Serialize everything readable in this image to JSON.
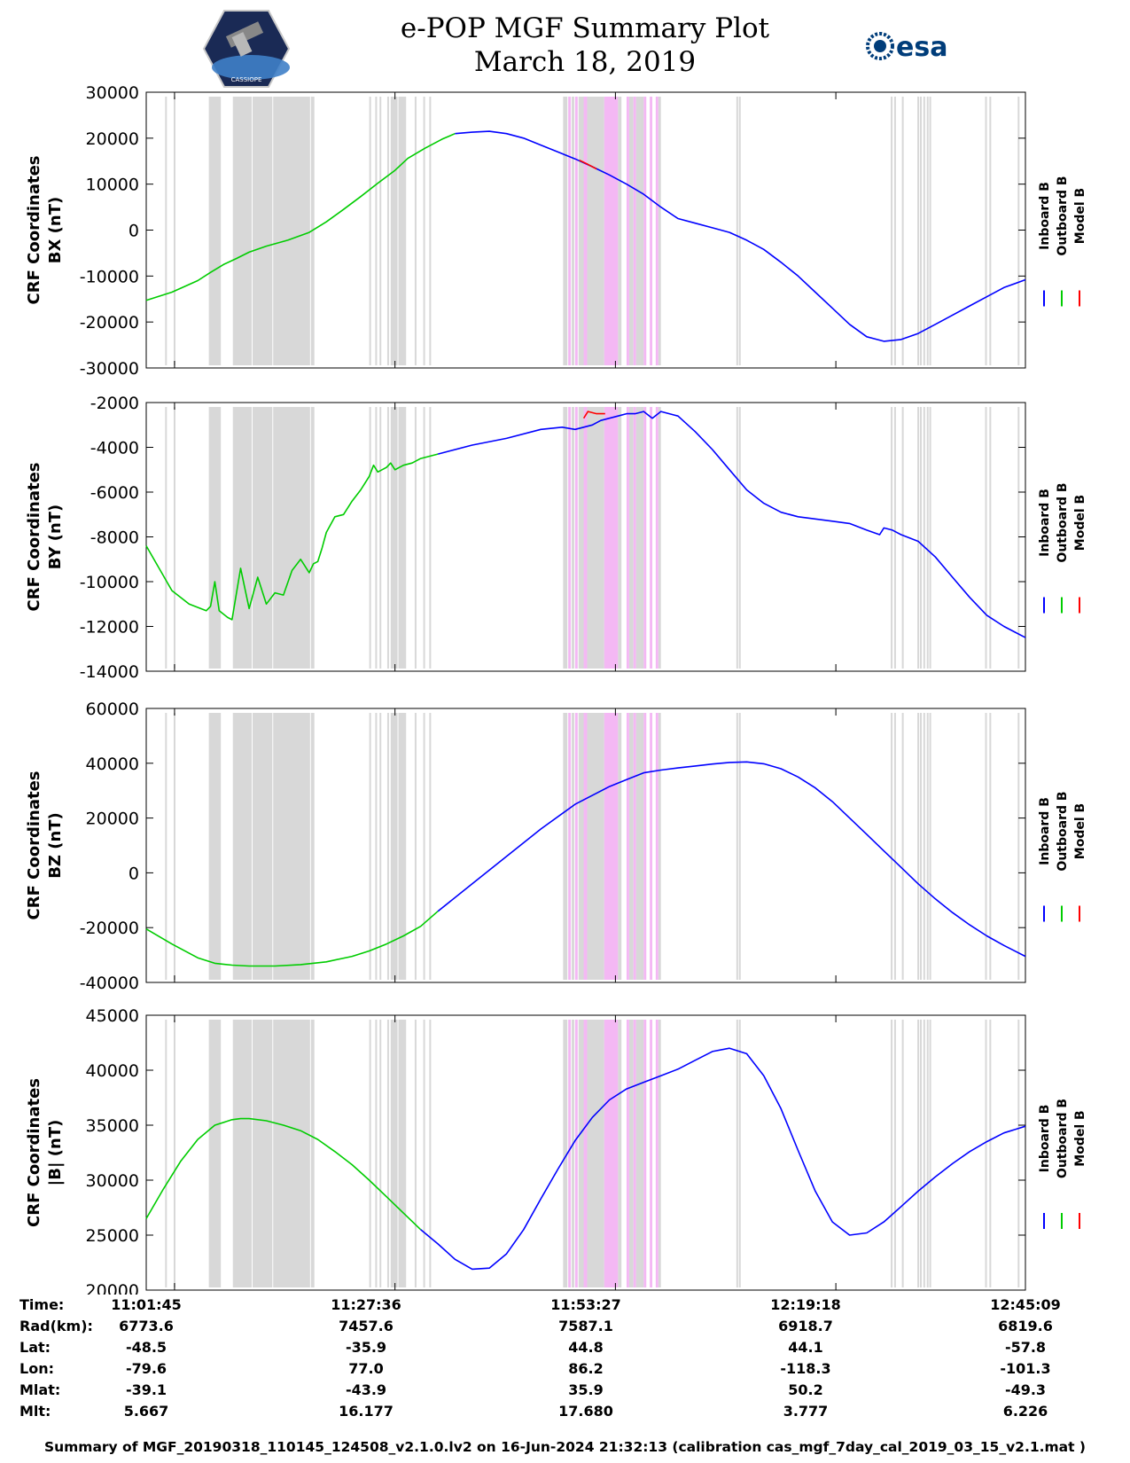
{
  "header": {
    "title_line1": "e-POP MGF Summary Plot",
    "title_line2": "March 18, 2019",
    "left_logo_icon": "cassiope-satellite-logo-icon",
    "left_logo_text": "CASSIOPE",
    "right_logo_icon": "esa-logo-icon",
    "right_logo_text": "esa"
  },
  "colors": {
    "inboard": "#0000ff",
    "outboard": "#00cc00",
    "model": "#ff0000",
    "gray_band": "#d8d8d8",
    "pink_band": "#f4b8f4"
  },
  "legend": {
    "entries": [
      "Inboard B",
      "Outboard B",
      "Model B"
    ]
  },
  "chart_data": [
    {
      "type": "line",
      "ylabel_line1": "CRF Coordinates",
      "ylabel_line2": "BX (nT)",
      "ylim": [
        -30000,
        30000
      ],
      "yticks": [
        30000,
        20000,
        10000,
        0,
        -10000,
        -20000,
        -30000
      ],
      "ytick_labels": [
        "30000",
        "20000",
        "10000",
        "0",
        "-10000",
        "-20000",
        "-30000"
      ],
      "series": [
        {
          "name": "Outboard B",
          "color_key": "outboard",
          "x": [
            0,
            3,
            6,
            7.5,
            9,
            10.5,
            12,
            14,
            16.5,
            19,
            21,
            23,
            25,
            27,
            29,
            30.5,
            32.5,
            34.5,
            36
          ],
          "y": [
            -15300,
            -13500,
            -11000,
            -9200,
            -7500,
            -6200,
            -4800,
            -3500,
            -2200,
            -500,
            1800,
            4500,
            7300,
            10200,
            13000,
            15600,
            17800,
            19800,
            21000
          ]
        },
        {
          "name": "Inboard B",
          "color_key": "inboard",
          "x": [
            36,
            38,
            40,
            42,
            44,
            46,
            48,
            50,
            52,
            54,
            56,
            58,
            60,
            62,
            64,
            66,
            68,
            70,
            72,
            74,
            76,
            78,
            80,
            82,
            84,
            86,
            88,
            90,
            92,
            94,
            96,
            98,
            100,
            102.5
          ],
          "y": [
            21000,
            21300,
            21500,
            21000,
            20000,
            18500,
            17000,
            15500,
            13800,
            12000,
            10000,
            7800,
            5000,
            2500,
            1500,
            500,
            -500,
            -2200,
            -4200,
            -7000,
            -10000,
            -13500,
            -17000,
            -20500,
            -23200,
            -24200,
            -23800,
            -22500,
            -20500,
            -18500,
            -16500,
            -14500,
            -12500,
            -10800
          ]
        },
        {
          "name": "Model B",
          "color_key": "model",
          "x": [
            50.5,
            51.5,
            52.5
          ],
          "y": [
            15200,
            14300,
            13300
          ]
        }
      ]
    },
    {
      "type": "line",
      "ylabel_line1": "CRF Coordinates",
      "ylabel_line2": "BY (nT)",
      "ylim": [
        -14000,
        -2000
      ],
      "yticks": [
        -2000,
        -4000,
        -6000,
        -8000,
        -10000,
        -12000,
        -14000
      ],
      "ytick_labels": [
        "-2000",
        "-4000",
        "-6000",
        "-8000",
        "-10000",
        "-12000",
        "-14000"
      ],
      "series": [
        {
          "name": "Outboard B",
          "color_key": "outboard",
          "x": [
            0,
            1.5,
            3,
            5,
            7,
            7.5,
            8,
            8.5,
            9.5,
            10,
            11,
            12,
            13,
            14,
            15,
            16,
            17,
            18,
            19,
            19.5,
            20,
            20.5,
            21,
            22,
            23,
            24,
            25,
            25.5,
            26,
            26.5,
            27,
            28,
            28.5,
            29,
            29.5,
            30,
            31,
            32,
            33,
            34
          ],
          "y": [
            -8400,
            -9400,
            -10400,
            -11000,
            -11300,
            -11100,
            -10000,
            -11300,
            -11600,
            -11700,
            -9400,
            -11200,
            -9800,
            -11000,
            -10500,
            -10600,
            -9500,
            -9000,
            -9600,
            -9200,
            -9100,
            -8500,
            -7800,
            -7100,
            -7000,
            -6400,
            -5900,
            -5600,
            -5300,
            -4800,
            -5100,
            -4900,
            -4700,
            -5000,
            -4900,
            -4800,
            -4700,
            -4500,
            -4400,
            -4300
          ]
        },
        {
          "name": "Inboard B",
          "color_key": "inboard",
          "x": [
            34,
            38,
            42,
            46,
            48.5,
            50,
            51,
            52,
            53,
            54,
            55,
            56,
            57,
            58,
            59,
            60,
            62,
            64,
            66,
            68,
            70,
            72,
            74,
            76,
            78,
            80,
            82,
            84,
            85.5,
            86,
            87,
            88,
            90,
            92,
            94,
            96,
            98,
            100,
            102.5
          ],
          "y": [
            -4300,
            -3900,
            -3600,
            -3200,
            -3100,
            -3200,
            -3100,
            -3000,
            -2800,
            -2700,
            -2600,
            -2500,
            -2500,
            -2400,
            -2700,
            -2400,
            -2600,
            -3300,
            -4100,
            -5000,
            -5900,
            -6500,
            -6900,
            -7100,
            -7200,
            -7300,
            -7400,
            -7700,
            -7900,
            -7600,
            -7700,
            -7900,
            -8200,
            -8900,
            -9800,
            -10700,
            -11500,
            -12000,
            -12500
          ]
        },
        {
          "name": "Model B",
          "color_key": "model",
          "x": [
            51,
            51.5,
            52.5,
            53.5
          ],
          "y": [
            -2700,
            -2400,
            -2500,
            -2500
          ]
        }
      ]
    },
    {
      "type": "line",
      "ylabel_line1": "CRF Coordinates",
      "ylabel_line2": "BZ (nT)",
      "ylim": [
        -40000,
        60000
      ],
      "yticks": [
        60000,
        40000,
        20000,
        0,
        -20000,
        -40000
      ],
      "ytick_labels": [
        "60000",
        "40000",
        "20000",
        "0",
        "-20000",
        "-40000"
      ],
      "series": [
        {
          "name": "Outboard B",
          "color_key": "outboard",
          "x": [
            0,
            3,
            6,
            8,
            10,
            12,
            15,
            18,
            21,
            24,
            26,
            28,
            30,
            32,
            34
          ],
          "y": [
            -20500,
            -26000,
            -31000,
            -33000,
            -33700,
            -34000,
            -34000,
            -33500,
            -32500,
            -30500,
            -28500,
            -26000,
            -23000,
            -19500,
            -14000
          ]
        },
        {
          "name": "Inboard B",
          "color_key": "inboard",
          "x": [
            34,
            38,
            42,
            46,
            50,
            54,
            56,
            58,
            60,
            62,
            64,
            66,
            68,
            70,
            72,
            74,
            76,
            78,
            80,
            82,
            84,
            86,
            88,
            90,
            92,
            94,
            96,
            98,
            100,
            102.5
          ],
          "y": [
            -14000,
            -4000,
            6000,
            16000,
            25000,
            31500,
            34000,
            36500,
            37500,
            38300,
            39000,
            39700,
            40300,
            40500,
            39800,
            38000,
            35000,
            31000,
            26000,
            20000,
            14000,
            8000,
            2000,
            -4000,
            -9500,
            -14500,
            -19000,
            -23000,
            -26500,
            -30500
          ]
        }
      ]
    },
    {
      "type": "line",
      "ylabel_line1": "CRF Coordinates",
      "ylabel_line2": "|B| (nT)",
      "ylim": [
        20000,
        45000
      ],
      "yticks": [
        45000,
        40000,
        35000,
        30000,
        25000,
        20000
      ],
      "ytick_labels": [
        "45000",
        "40000",
        "35000",
        "30000",
        "25000",
        "20000"
      ],
      "series": [
        {
          "name": "Outboard B",
          "color_key": "outboard",
          "x": [
            0,
            2,
            4,
            6,
            8,
            10,
            11,
            12,
            14,
            16,
            18,
            20,
            22,
            24,
            26,
            28,
            30,
            32
          ],
          "y": [
            26500,
            29200,
            31700,
            33700,
            35000,
            35500,
            35600,
            35600,
            35400,
            35000,
            34500,
            33700,
            32600,
            31400,
            30000,
            28500,
            27000,
            25500
          ]
        },
        {
          "name": "Inboard B",
          "color_key": "inboard",
          "x": [
            32,
            34,
            36,
            38,
            40,
            42,
            44,
            46,
            48,
            50,
            52,
            54,
            56,
            58,
            60,
            62,
            64,
            66,
            68,
            70,
            72,
            74,
            76,
            78,
            80,
            82,
            84,
            86,
            88,
            90,
            92,
            94,
            96,
            98,
            100,
            102.5
          ],
          "y": [
            25500,
            24200,
            22800,
            21900,
            22000,
            23300,
            25500,
            28300,
            31000,
            33600,
            35700,
            37300,
            38300,
            38900,
            39500,
            40100,
            40900,
            41700,
            42000,
            41500,
            39500,
            36500,
            32700,
            29000,
            26200,
            25000,
            25200,
            26200,
            27600,
            29000,
            30300,
            31500,
            32600,
            33500,
            34300,
            34900
          ]
        }
      ]
    }
  ],
  "bands": {
    "gray_wide": [
      [
        7.3,
        8.7
      ],
      [
        10.1,
        12.3
      ],
      [
        12.4,
        14.7
      ],
      [
        14.8,
        19.1
      ],
      [
        19.2,
        19.6
      ],
      [
        28.5,
        29.3
      ],
      [
        29.4,
        30.3
      ],
      [
        50.4,
        51.1
      ],
      [
        51.1,
        53.4
      ],
      [
        53.9,
        54.3
      ],
      [
        56.3,
        56.8
      ],
      [
        57.1,
        57.6
      ]
    ],
    "gray_lines": [
      2.2,
      3.2,
      26.0,
      26.7,
      27.2,
      28.1,
      31.3,
      32.3,
      33.0,
      68.8,
      69.1,
      86.8,
      87.2,
      88.1,
      89.9,
      90.2,
      90.6,
      91.0,
      91.3,
      97.8,
      98.3,
      101.6
    ],
    "pink": [
      [
        49.2,
        49.5
      ],
      [
        50.0,
        50.3
      ],
      [
        51.0,
        51.4
      ],
      [
        53.4,
        55.0
      ],
      [
        56.0,
        56.3
      ],
      [
        56.8,
        57.1
      ],
      [
        58.0,
        58.3
      ],
      [
        58.7,
        59.0
      ],
      [
        59.4,
        59.7
      ]
    ],
    "gray_after_pink": [
      [
        48.6,
        49.1
      ],
      [
        49.6,
        49.9
      ],
      [
        55.0,
        55.4
      ],
      [
        57.6,
        58.0
      ],
      [
        59.7,
        60.0
      ]
    ]
  },
  "x_axis": {
    "range": [
      0,
      102.5
    ],
    "major_ticks": [
      3.3,
      29.0,
      54.7,
      80.4,
      106.1
    ]
  },
  "info_table": {
    "row_labels": [
      "Time:",
      "Rad(km):",
      "Lat:",
      "Lon:",
      "Mlat:",
      "Mlt:"
    ],
    "columns": [
      [
        "11:01:45",
        "6773.6",
        "-48.5",
        "-79.6",
        "-39.1",
        "5.667"
      ],
      [
        "11:27:36",
        "7457.6",
        "-35.9",
        "77.0",
        "-43.9",
        "16.177"
      ],
      [
        "11:53:27",
        "7587.1",
        "44.8",
        "86.2",
        "35.9",
        "17.680"
      ],
      [
        "12:19:18",
        "6918.7",
        "44.1",
        "-118.3",
        "50.2",
        "3.777"
      ],
      [
        "12:45:09",
        "6819.6",
        "-57.8",
        "-101.3",
        "-49.3",
        "6.226"
      ]
    ]
  },
  "footer": {
    "text": "Summary of MGF_20190318_110145_124508_v2.1.0.lv2 on 16-Jun-2024 21:32:13 (calibration cas_mgf_7day_cal_2019_03_15_v2.1.mat )"
  }
}
